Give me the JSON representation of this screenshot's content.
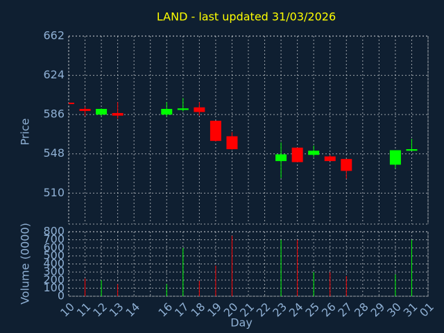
{
  "chart_data": [
    {
      "type": "candlestick",
      "title": "LAND - last updated 31/03/2026",
      "y_label": "Price",
      "categories": [
        "10",
        "11",
        "12",
        "13",
        "14",
        null,
        "16",
        "17",
        "18",
        "19",
        "20",
        "21",
        "22",
        "23",
        "24",
        "25",
        "26",
        "27",
        "28",
        "29",
        "30",
        "31",
        "01"
      ],
      "open": [
        597.5,
        591.5,
        586,
        587.5,
        null,
        null,
        586,
        590.5,
        593,
        580,
        565,
        null,
        null,
        541,
        554,
        547,
        545.5,
        543,
        null,
        null,
        537.5,
        551,
        null
      ],
      "high": [
        598,
        594,
        592,
        598,
        null,
        null,
        598,
        602,
        598,
        580,
        569,
        null,
        null,
        559,
        554,
        556,
        547,
        543,
        null,
        null,
        551.5,
        562.5,
        null
      ],
      "low": [
        596,
        584.5,
        584.5,
        582,
        null,
        null,
        584,
        589,
        585,
        560,
        552,
        null,
        null,
        524.5,
        540,
        545,
        541,
        524,
        null,
        null,
        534,
        551,
        null
      ],
      "close": [
        596.5,
        589.5,
        591.5,
        585,
        null,
        null,
        591.5,
        592,
        588.5,
        560.5,
        552.5,
        null,
        null,
        547.5,
        540,
        551,
        541,
        531.5,
        null,
        null,
        551.5,
        552.5,
        null
      ],
      "up_color": "#00ff00",
      "down_color": "#ff0000",
      "ylim": [
        480,
        662
      ],
      "yticks": [
        510,
        548,
        586,
        624,
        662
      ],
      "grid": true
    },
    {
      "type": "volume",
      "y_label": "Volume (0000)",
      "x_label": "Day",
      "values": [
        0,
        220,
        200,
        150,
        null,
        null,
        150,
        600,
        190,
        380,
        750,
        null,
        null,
        700,
        700,
        300,
        300,
        250,
        null,
        null,
        270,
        700,
        null
      ],
      "ylim": [
        0,
        800
      ],
      "yticks": [
        0,
        100,
        200,
        300,
        400,
        500,
        600,
        700,
        800
      ],
      "grid": true
    }
  ]
}
